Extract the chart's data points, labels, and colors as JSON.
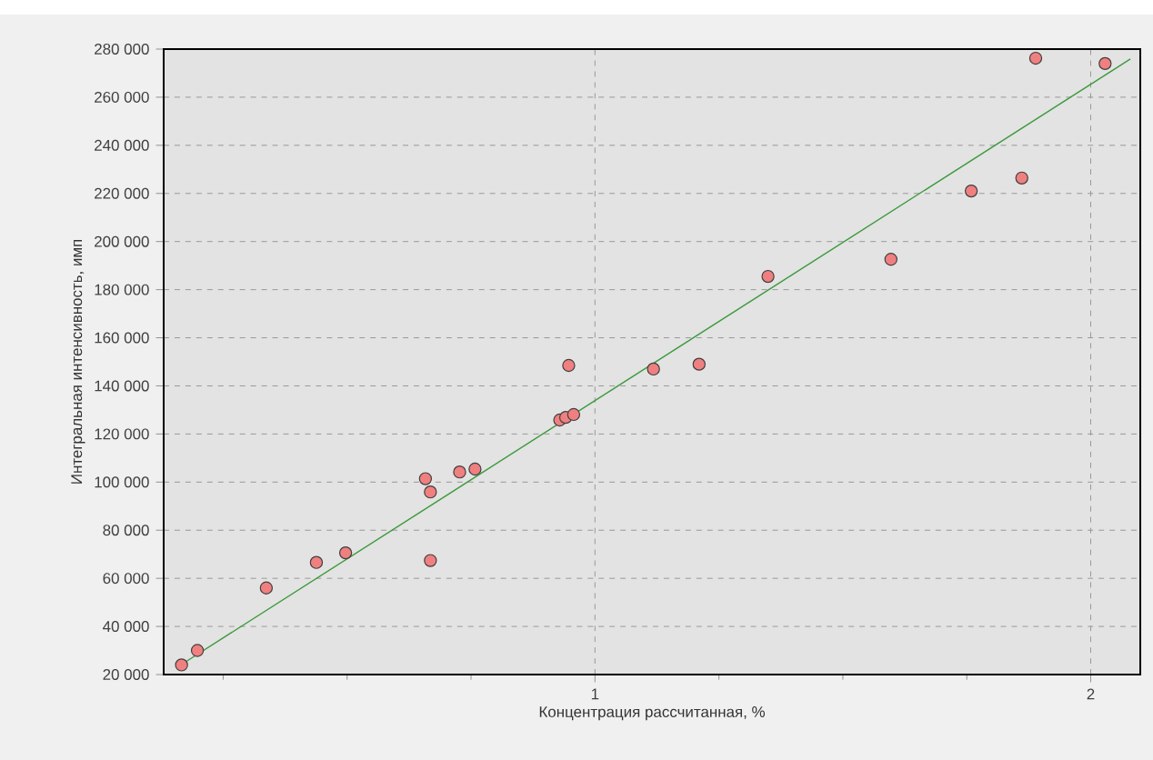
{
  "chart_data": {
    "type": "scatter",
    "xlabel": "Концентрация рассчитанная, %",
    "ylabel": "Интегральная интенсивность, имп",
    "xlim": [
      0.13,
      2.1
    ],
    "xticks": [
      {
        "value": 0.25,
        "label": null
      },
      {
        "value": 0.5,
        "label": null
      },
      {
        "value": 0.75,
        "label": null
      },
      1,
      {
        "value": 1.25,
        "label": null
      },
      {
        "value": 1.5,
        "label": null
      },
      {
        "value": 1.75,
        "label": null
      },
      2
    ],
    "ylim": [
      20000,
      280000
    ],
    "yticks": [
      {
        "value": 20000,
        "label": "20 000"
      },
      {
        "value": 40000,
        "label": "40 000"
      },
      {
        "value": 60000,
        "label": "60 000"
      },
      {
        "value": 80000,
        "label": "80 000"
      },
      {
        "value": 100000,
        "label": "100 000"
      },
      {
        "value": 120000,
        "label": "120 000"
      },
      {
        "value": 140000,
        "label": "140 000"
      },
      {
        "value": 160000,
        "label": "160 000"
      },
      {
        "value": 180000,
        "label": "180 000"
      },
      {
        "value": 200000,
        "label": "200 000"
      },
      {
        "value": 220000,
        "label": "220 000"
      },
      {
        "value": 240000,
        "label": "240 000"
      },
      {
        "value": 260000,
        "label": "260 000"
      },
      {
        "value": 280000,
        "label": "280 000"
      }
    ],
    "grid": true,
    "series": [
      {
        "marker": "circle",
        "color": "#f08080",
        "x": [
          0.166,
          0.198,
          0.337,
          0.438,
          0.497,
          0.658,
          0.668,
          0.668,
          0.727,
          0.758,
          0.929,
          0.941,
          0.957,
          0.947,
          1.118,
          1.21,
          1.349,
          1.597,
          1.759,
          1.861,
          1.889,
          2.029
        ],
        "values": [
          24000,
          30000,
          56000,
          66600,
          70600,
          101400,
          95900,
          67400,
          104200,
          105400,
          125800,
          126900,
          128100,
          148500,
          147000,
          149000,
          185500,
          192600,
          221000,
          226400,
          276200,
          274000
        ]
      },
      {
        "type": "line",
        "marker": "none",
        "line_style": "solid",
        "color": "#3c9a3c",
        "x": [
          0.16,
          2.08
        ],
        "values": [
          23400,
          275900
        ]
      }
    ]
  }
}
